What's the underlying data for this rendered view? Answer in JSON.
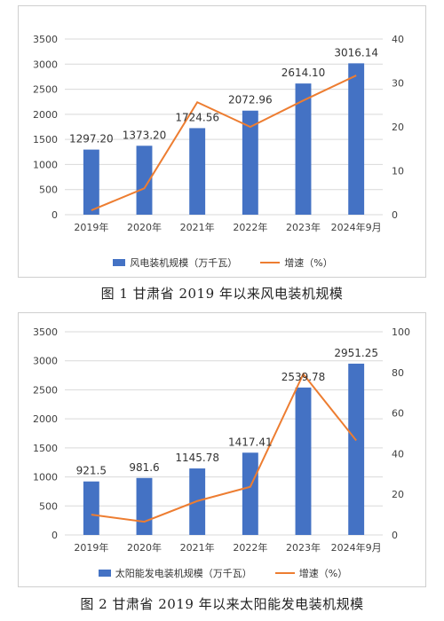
{
  "colors": {
    "bar": "#4472c4",
    "line": "#ed7d31",
    "grid": "#d9d9d9",
    "text": "#404040"
  },
  "chart_data": [
    {
      "type": "bar",
      "categories": [
        "2019年",
        "2020年",
        "2021年",
        "2022年",
        "2023年",
        "2024年9月"
      ],
      "series": [
        {
          "name": "风电装机规模（万千瓦）",
          "type": "bar",
          "axis": "left",
          "values": [
            1297.2,
            1373.2,
            1724.56,
            2072.96,
            2614.1,
            3016.14
          ],
          "labels": [
            "1297.20",
            "1373.20",
            "1724.56",
            "2072.96",
            "2614.10",
            "3016.14"
          ]
        },
        {
          "name": "增速（%）",
          "type": "line",
          "axis": "right",
          "values": [
            1.0,
            6.0,
            25.6,
            20.0,
            26.0,
            31.7
          ]
        }
      ],
      "ylim": [
        0,
        3500
      ],
      "yticks": [
        "0",
        "500",
        "1000",
        "1500",
        "2000",
        "2500",
        "3000",
        "3500"
      ],
      "y2lim": [
        0,
        40
      ],
      "y2ticks": [
        "0",
        "10",
        "20",
        "30",
        "40"
      ],
      "grid": true,
      "legend_position": "bottom"
    },
    {
      "type": "bar",
      "categories": [
        "2019年",
        "2020年",
        "2021年",
        "2022年",
        "2023年",
        "2024年9月"
      ],
      "series": [
        {
          "name": "太阳能发电装机规模（万千瓦）",
          "type": "bar",
          "axis": "left",
          "values": [
            921.5,
            981.6,
            1145.78,
            1417.41,
            2539.78,
            2951.25
          ],
          "labels": [
            "921.5",
            "981.6",
            "1145.78",
            "1417.41",
            "2539.78",
            "2951.25"
          ]
        },
        {
          "name": "增速（%）",
          "type": "line",
          "axis": "right",
          "values": [
            10.0,
            6.5,
            16.7,
            23.7,
            79.2,
            46.5
          ]
        }
      ],
      "ylim": [
        0,
        3500
      ],
      "yticks": [
        "0",
        "500",
        "1000",
        "1500",
        "2000",
        "2500",
        "3000",
        "3500"
      ],
      "y2lim": [
        0,
        100
      ],
      "y2ticks": [
        "0",
        "20",
        "40",
        "60",
        "80",
        "100"
      ],
      "grid": true,
      "legend_position": "bottom"
    }
  ],
  "captions": [
    "图 1  甘肃省 2019 年以来风电装机规模",
    "图 2  甘肃省 2019 年以来太阳能发电装机规模"
  ]
}
